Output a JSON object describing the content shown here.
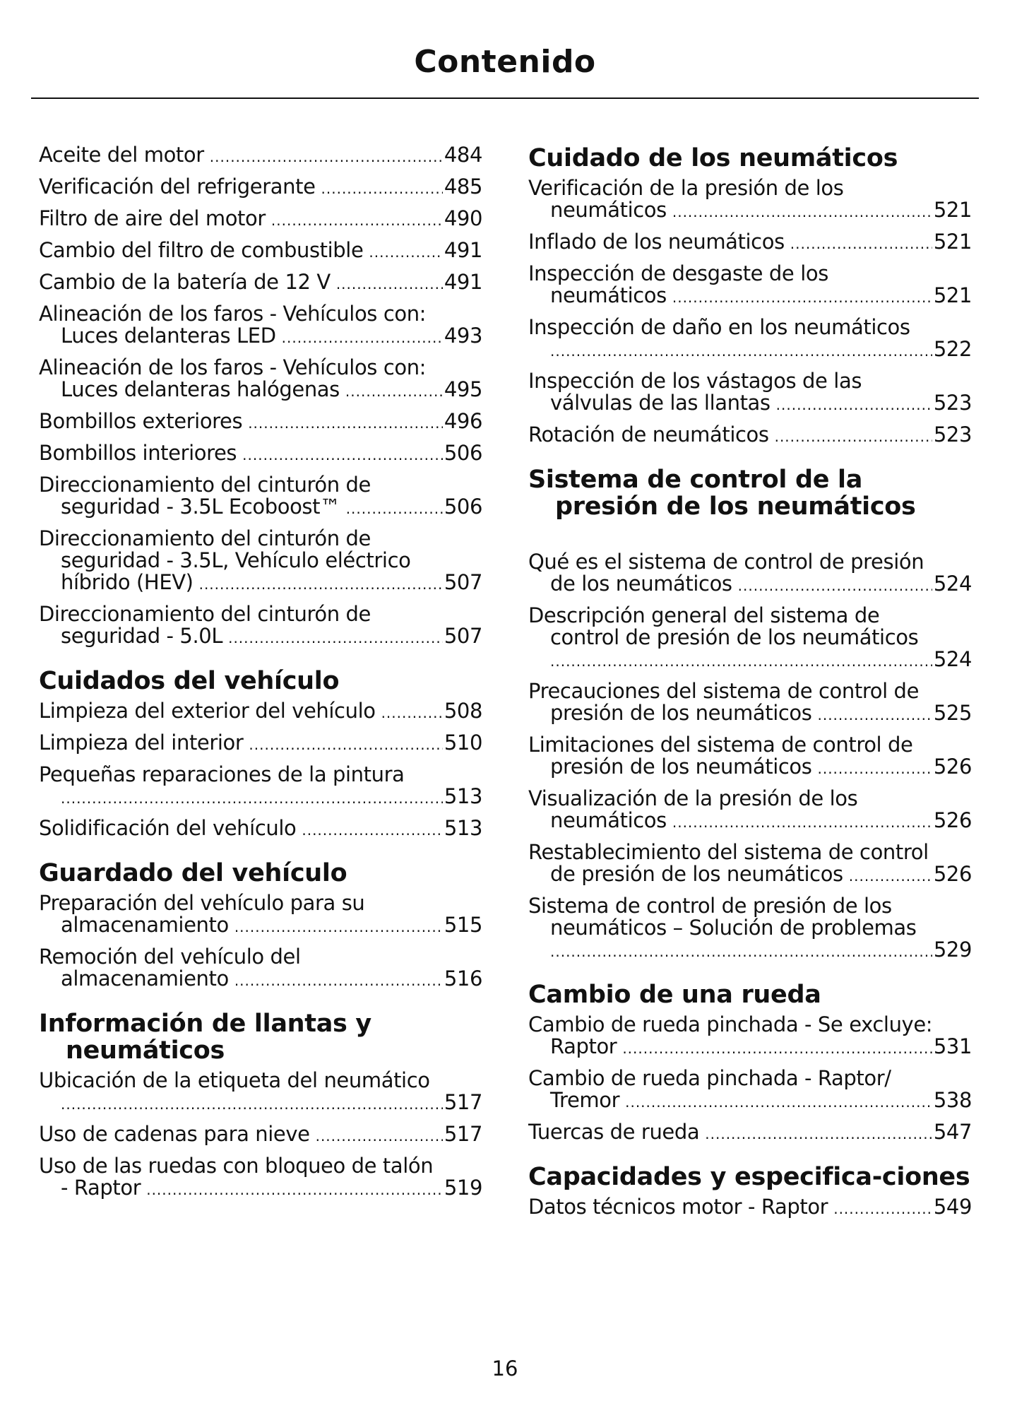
{
  "title": "Contenido",
  "page_number": "16",
  "columns": [
    {
      "sections": [
        {
          "heading": "",
          "entries": [
            {
              "lines": [
                "Aceite del motor"
              ],
              "page": "484"
            },
            {
              "lines": [
                "Verificación del refrigerante"
              ],
              "page": "485"
            },
            {
              "lines": [
                "Filtro de aire del motor"
              ],
              "page": "490"
            },
            {
              "lines": [
                "Cambio del filtro de combustible"
              ],
              "page": "491"
            },
            {
              "lines": [
                "Cambio de la batería de 12 V"
              ],
              "page": "491"
            },
            {
              "lines": [
                "Alineación de los faros - Vehículos con:",
                "Luces delanteras LED"
              ],
              "page": "493"
            },
            {
              "lines": [
                "Alineación de los faros - Vehículos con:",
                "Luces delanteras halógenas"
              ],
              "page": "495"
            },
            {
              "lines": [
                "Bombillos exteriores"
              ],
              "page": "496"
            },
            {
              "lines": [
                "Bombillos interiores"
              ],
              "page": "506"
            },
            {
              "lines": [
                "Direccionamiento del cinturón de",
                "seguridad - 3.5L Ecoboost™"
              ],
              "page": "506"
            },
            {
              "lines": [
                "Direccionamiento del cinturón de",
                "seguridad - 3.5L, Vehículo eléctrico",
                "híbrido (HEV)"
              ],
              "page": "507"
            },
            {
              "lines": [
                "Direccionamiento del cinturón de",
                "seguridad - 5.0L"
              ],
              "page": "507"
            }
          ]
        },
        {
          "heading": "Cuidados del vehículo",
          "entries": [
            {
              "lines": [
                "Limpieza del exterior del vehículo"
              ],
              "page": "508"
            },
            {
              "lines": [
                "Limpieza del interior"
              ],
              "page": "510"
            },
            {
              "lines": [
                "Pequeñas reparaciones de la pintura",
                ""
              ],
              "page": "513"
            },
            {
              "lines": [
                "Solidificación del vehículo"
              ],
              "page": "513"
            }
          ]
        },
        {
          "heading": "Guardado del vehículo",
          "entries": [
            {
              "lines": [
                "Preparación del vehículo para su",
                "almacenamiento"
              ],
              "page": "515"
            },
            {
              "lines": [
                "Remoción del vehículo del",
                "almacenamiento"
              ],
              "page": "516"
            }
          ]
        },
        {
          "heading": "Información de llantas y neumáticos",
          "entries": [
            {
              "lines": [
                "Ubicación de la etiqueta del neumático",
                ""
              ],
              "page": "517"
            },
            {
              "lines": [
                "Uso de cadenas para nieve"
              ],
              "page": "517"
            },
            {
              "lines": [
                "Uso de las ruedas con bloqueo de talón",
                "- Raptor"
              ],
              "page": "519"
            }
          ]
        }
      ]
    },
    {
      "sections": [
        {
          "heading": "Cuidado de los neumáticos",
          "entries": [
            {
              "lines": [
                "Verificación de la presión de los",
                "neumáticos"
              ],
              "page": "521"
            },
            {
              "lines": [
                "Inflado de los neumáticos"
              ],
              "page": "521"
            },
            {
              "lines": [
                "Inspección de desgaste de los",
                "neumáticos"
              ],
              "page": "521"
            },
            {
              "lines": [
                "Inspección de daño en los neumáticos",
                ""
              ],
              "page": "522"
            },
            {
              "lines": [
                "Inspección de los vástagos de las",
                "válvulas de las llantas"
              ],
              "page": "523"
            },
            {
              "lines": [
                "Rotación de neumáticos"
              ],
              "page": "523"
            }
          ]
        },
        {
          "heading": "Sistema de control de la presión de los neumáticos",
          "spaced": true,
          "entries": [
            {
              "lines": [
                "Qué es el sistema de control de presión",
                "de los neumáticos"
              ],
              "page": "524"
            },
            {
              "lines": [
                "Descripción general del sistema de",
                "control de presión de los neumáticos",
                ""
              ],
              "page": "524"
            },
            {
              "lines": [
                "Precauciones del sistema de control de",
                "presión de los neumáticos"
              ],
              "page": "525"
            },
            {
              "lines": [
                "Limitaciones del sistema de control de",
                "presión de los neumáticos"
              ],
              "page": "526"
            },
            {
              "lines": [
                "Visualización de la presión de los",
                "neumáticos"
              ],
              "page": "526"
            },
            {
              "lines": [
                "Restablecimiento del sistema de control",
                "de presión de los neumáticos"
              ],
              "page": "526"
            },
            {
              "lines": [
                "Sistema de control de presión de los",
                "neumáticos – Solución de problemas",
                ""
              ],
              "page": "529"
            }
          ]
        },
        {
          "heading": "Cambio de una rueda",
          "entries": [
            {
              "lines": [
                "Cambio de rueda pinchada - Se excluye:",
                "Raptor"
              ],
              "page": "531"
            },
            {
              "lines": [
                "Cambio de rueda pinchada - Raptor/",
                "Tremor"
              ],
              "page": "538"
            },
            {
              "lines": [
                "Tuercas de rueda"
              ],
              "page": "547"
            }
          ]
        },
        {
          "heading": "Capacidades y especifica-ciones",
          "entries": [
            {
              "lines": [
                "Datos técnicos motor - Raptor"
              ],
              "page": "549"
            }
          ]
        }
      ]
    }
  ]
}
